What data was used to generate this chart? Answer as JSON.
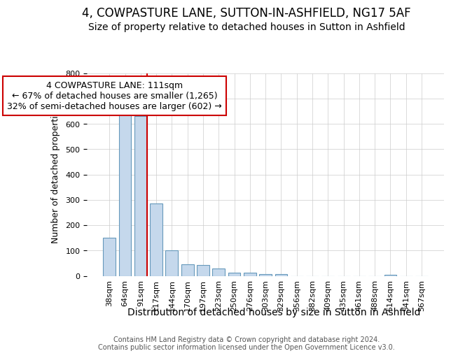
{
  "title1": "4, COWPASTURE LANE, SUTTON-IN-ASHFIELD, NG17 5AF",
  "title2": "Size of property relative to detached houses in Sutton in Ashfield",
  "xlabel": "Distribution of detached houses by size in Sutton in Ashfield",
  "ylabel": "Number of detached properties",
  "categories": [
    "38sqm",
    "64sqm",
    "91sqm",
    "117sqm",
    "144sqm",
    "170sqm",
    "197sqm",
    "223sqm",
    "250sqm",
    "276sqm",
    "303sqm",
    "329sqm",
    "356sqm",
    "382sqm",
    "409sqm",
    "435sqm",
    "461sqm",
    "488sqm",
    "514sqm",
    "541sqm",
    "567sqm"
  ],
  "values": [
    150,
    635,
    630,
    285,
    102,
    45,
    43,
    28,
    12,
    12,
    8,
    8,
    0,
    0,
    0,
    0,
    0,
    0,
    5,
    0,
    0
  ],
  "bar_color": "#c5d8ec",
  "bar_edge_color": "#6699bb",
  "vline_color": "#cc0000",
  "vline_x_idx": 2,
  "annotation_text": "4 COWPASTURE LANE: 111sqm\n← 67% of detached houses are smaller (1,265)\n32% of semi-detached houses are larger (602) →",
  "annotation_box_color": "#ffffff",
  "annotation_box_edge": "#cc0000",
  "footer": "Contains HM Land Registry data © Crown copyright and database right 2024.\nContains public sector information licensed under the Open Government Licence v3.0.",
  "ylim": [
    0,
    800
  ],
  "yticks": [
    0,
    100,
    200,
    300,
    400,
    500,
    600,
    700,
    800
  ],
  "bg_color": "#ffffff",
  "plot_bg_color": "#ffffff",
  "title_fontsize": 12,
  "subtitle_fontsize": 10,
  "ylabel_fontsize": 9,
  "xlabel_fontsize": 10,
  "tick_fontsize": 8,
  "footer_fontsize": 7,
  "annot_fontsize": 9
}
